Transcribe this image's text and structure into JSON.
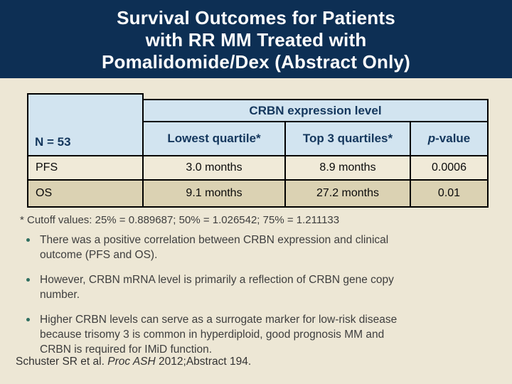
{
  "slide": {
    "title": "Survival Outcomes for Patients\nwith RR MM Treated with\nPomalidomide/Dex (Abstract Only)"
  },
  "table": {
    "n_label": "N = 53",
    "group_header": "CRBN expression level",
    "col_lowest": "Lowest quartile*",
    "col_top3": "Top 3 quartiles*",
    "p_italic": "p",
    "p_rest": "-value",
    "rows": [
      {
        "label": "PFS",
        "lowest": "3.0 months",
        "top3": "8.9 months",
        "p": "0.0006"
      },
      {
        "label": "OS",
        "lowest": "9.1 months",
        "top3": "27.2 months",
        "p": "0.01"
      }
    ]
  },
  "chart_data": {
    "type": "table",
    "title": "CRBN expression level",
    "columns": [
      "N = 53",
      "Lowest quartile*",
      "Top 3 quartiles*",
      "p-value"
    ],
    "rows": [
      [
        "PFS",
        "3.0 months",
        "8.9 months",
        "0.0006"
      ],
      [
        "OS",
        "9.1 months",
        "27.2 months",
        "0.01"
      ]
    ]
  },
  "footnote": "* Cutoff values: 25% = 0.889687; 50% = 1.026542; 75% = 1.211133",
  "bullets": [
    "There was a positive correlation between CRBN expression and clinical\noutcome (PFS and OS).",
    "However, CRBN mRNA level is primarily a reflection of CRBN gene copy\nnumber.",
    "Higher CRBN levels can serve as a surrogate marker for low-risk disease\nbecause trisomy 3 is common in hyperdiploid, good prognosis MM and\nCRBN is required for IMiD function."
  ],
  "citation": {
    "pre": "Schuster SR et al. ",
    "italic": "Proc ASH",
    "post": " 2012;Abstract 194."
  },
  "colors": {
    "title_band": "#0D2F54",
    "body_background": "#EDE7D5",
    "table_header_blue": "#D2E4F0",
    "table_header_text": "#14375D",
    "pfs_row": "#F0EAD8",
    "os_row": "#DBD2B3",
    "bullet_dot": "#2F6F60",
    "title_text": "#FFFFFF"
  }
}
